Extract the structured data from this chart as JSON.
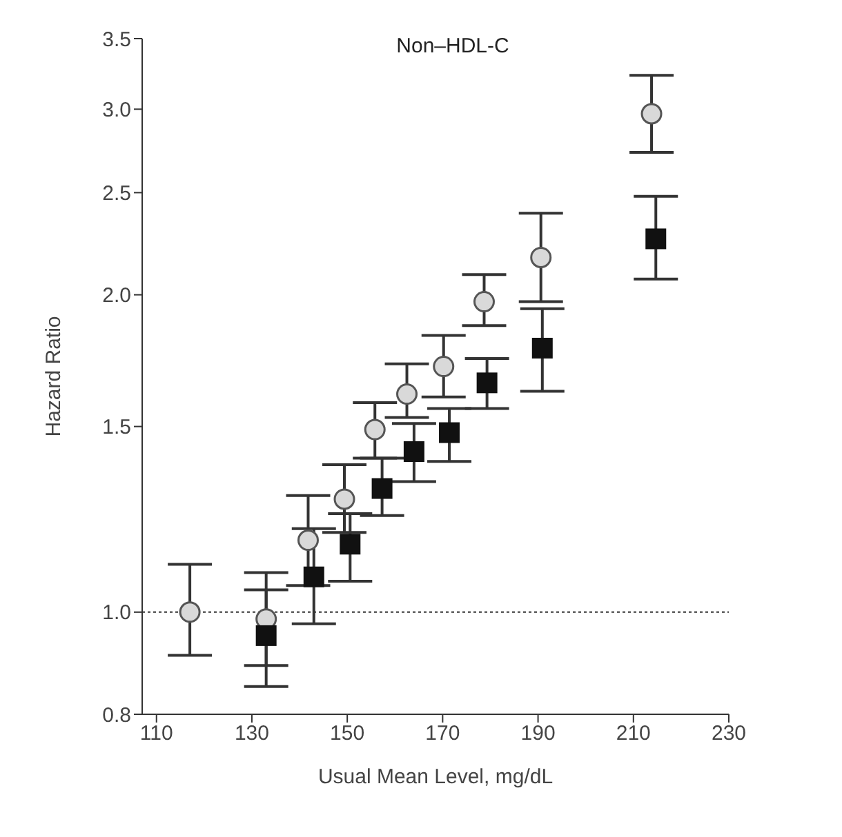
{
  "chart_data": {
    "type": "scatter",
    "title": "Non–HDL-C",
    "xlabel": "Usual Mean Level, mg/dL",
    "ylabel": "Hazard Ratio",
    "log": "y",
    "xlim": [
      107,
      230
    ],
    "xticks": [
      110,
      130,
      150,
      170,
      190,
      210,
      230
    ],
    "ylim": [
      0.8,
      3.5
    ],
    "yticks": [
      0.8,
      {
        "value": 1,
        "label": "1.0"
      },
      1.5,
      {
        "value": 2,
        "label": "2.0"
      },
      2.5,
      {
        "value": 3,
        "label": "3.0"
      },
      3.5
    ],
    "grid": false,
    "legend": false,
    "ref_lines": [
      {
        "axis": "y",
        "value": 1.0,
        "line_style": "dotted",
        "color": "#333333"
      }
    ],
    "series": [
      {
        "color": "#d9d9d9",
        "marker": "circle",
        "x": [
          117,
          133,
          141.8,
          149.4,
          155.8,
          162.5,
          170.2,
          178.7,
          190.6,
          213.8
        ],
        "values": [
          1.0,
          0.985,
          1.17,
          1.28,
          1.49,
          1.61,
          1.71,
          1.97,
          2.17,
          2.97
        ],
        "errors": [
          [
            0.91,
            1.11
          ],
          [
            0.89,
            1.09
          ],
          [
            1.06,
            1.29
          ],
          [
            1.19,
            1.38
          ],
          [
            1.4,
            1.58
          ],
          [
            1.53,
            1.72
          ],
          [
            1.6,
            1.83
          ],
          [
            1.87,
            2.09
          ],
          [
            1.97,
            2.39
          ],
          [
            2.73,
            3.23
          ]
        ]
      },
      {
        "color": "#111111",
        "marker": "square",
        "x": [
          133,
          143,
          150.6,
          157.3,
          164,
          171.4,
          179.3,
          190.9,
          214.7
        ],
        "values": [
          0.95,
          1.08,
          1.16,
          1.31,
          1.42,
          1.48,
          1.65,
          1.78,
          2.26
        ],
        "errors": [
          [
            0.85,
            1.05
          ],
          [
            0.975,
            1.2
          ],
          [
            1.07,
            1.24
          ],
          [
            1.235,
            1.4
          ],
          [
            1.33,
            1.51
          ],
          [
            1.39,
            1.56
          ],
          [
            1.56,
            1.74
          ],
          [
            1.62,
            1.94
          ],
          [
            2.07,
            2.48
          ]
        ]
      }
    ]
  }
}
